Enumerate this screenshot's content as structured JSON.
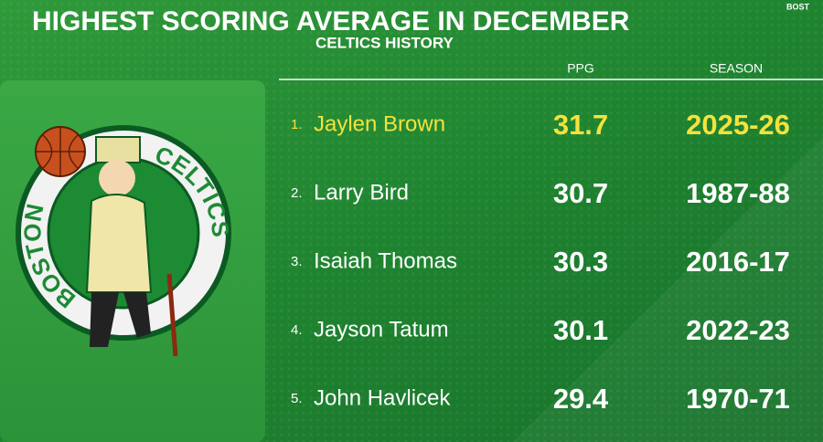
{
  "header": {
    "title": "HIGHEST SCORING AVERAGE IN DECEMBER",
    "subtitle": "CELTICS HISTORY",
    "corner": "BOST"
  },
  "logo": {
    "left_text": "BOSTON",
    "right_text": "CELTICS"
  },
  "table": {
    "columns": [
      "PPG",
      "SEASON"
    ],
    "rows": [
      {
        "rank": "1.",
        "player": "Jaylen Brown",
        "ppg": 31.7,
        "season": "2025-26"
      },
      {
        "rank": "2.",
        "player": "Larry Bird",
        "ppg": 30.7,
        "season": "1987-88"
      },
      {
        "rank": "3.",
        "player": "Isaiah Thomas",
        "ppg": 30.3,
        "season": "2016-17"
      },
      {
        "rank": "4.",
        "player": "Jayson Tatum",
        "ppg": 30.1,
        "season": "2022-23"
      },
      {
        "rank": "5.",
        "player": "John Havlicek",
        "ppg": 29.4,
        "season": "1970-71"
      }
    ]
  }
}
